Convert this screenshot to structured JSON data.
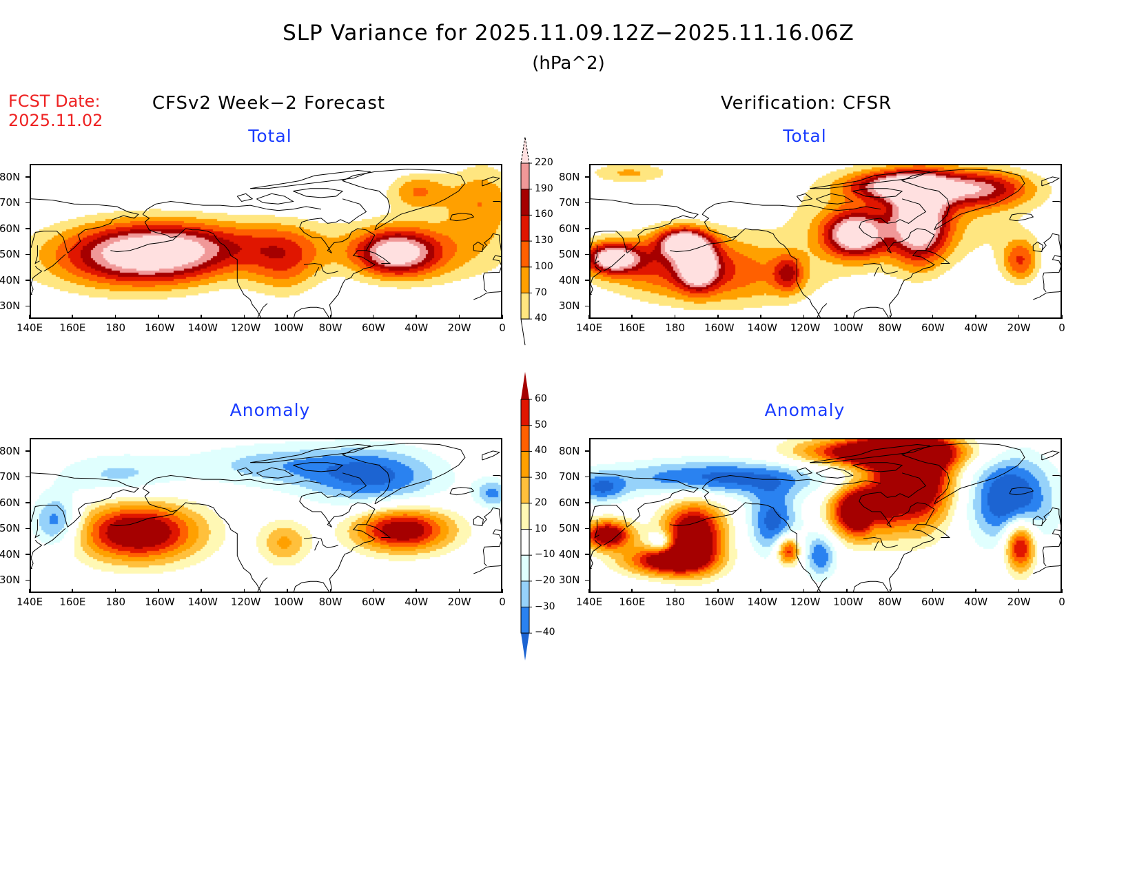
{
  "header": {
    "title": "SLP Variance for 2025.11.09.12Z−2025.11.16.06Z",
    "units": "(hPa^2)",
    "fcst_label": "FCST Date:",
    "fcst_date": "2025.11.02",
    "left_column": "CFSv2 Week−2 Forecast",
    "right_column": "Verification: CFSR"
  },
  "chart_data": [
    {
      "type": "heatmap",
      "id": "forecast-total",
      "title": "Total",
      "x_ticks": [
        "140E",
        "160E",
        "180",
        "160W",
        "140W",
        "120W",
        "100W",
        "80W",
        "60W",
        "40W",
        "20W",
        "0"
      ],
      "y_ticks": [
        "30N",
        "40N",
        "50N",
        "60N",
        "70N",
        "80N"
      ],
      "xlim": [
        140,
        360
      ],
      "ylim": [
        25,
        85
      ],
      "scale": "total",
      "blobs": [
        {
          "lon": 195,
          "lat": 51,
          "slon": 26,
          "slat": 8,
          "amp": 225
        },
        {
          "lon": 180,
          "lat": 48,
          "slon": 38,
          "slat": 11,
          "amp": 60
        },
        {
          "lon": 310,
          "lat": 51,
          "slon": 13,
          "slat": 6,
          "amp": 200
        },
        {
          "lon": 325,
          "lat": 52,
          "slon": 30,
          "slat": 10,
          "amp": 80
        },
        {
          "lon": 258,
          "lat": 47,
          "slon": 12,
          "slat": 9,
          "amp": 95
        },
        {
          "lon": 240,
          "lat": 55,
          "slon": 30,
          "slat": 7,
          "amp": 70
        },
        {
          "lon": 320,
          "lat": 75,
          "slon": 10,
          "slat": 5,
          "amp": 95
        },
        {
          "lon": 350,
          "lat": 72,
          "slon": 12,
          "slat": 10,
          "amp": 90
        }
      ]
    },
    {
      "type": "heatmap",
      "id": "verification-total",
      "title": "Total",
      "x_ticks": [
        "140E",
        "160E",
        "180",
        "160W",
        "140W",
        "120W",
        "100W",
        "80W",
        "60W",
        "40W",
        "20W",
        "0"
      ],
      "y_ticks": [
        "30N",
        "40N",
        "50N",
        "60N",
        "70N",
        "80N"
      ],
      "xlim": [
        140,
        360
      ],
      "ylim": [
        25,
        85
      ],
      "scale": "total",
      "blobs": [
        {
          "lon": 150,
          "lat": 49,
          "slon": 9,
          "slat": 4,
          "amp": 220
        },
        {
          "lon": 183,
          "lat": 55,
          "slon": 8,
          "slat": 4,
          "amp": 215
        },
        {
          "lon": 190,
          "lat": 46,
          "slon": 6,
          "slat": 6,
          "amp": 200
        },
        {
          "lon": 180,
          "lat": 47,
          "slon": 28,
          "slat": 9,
          "amp": 120
        },
        {
          "lon": 263,
          "lat": 58,
          "slon": 10,
          "slat": 6,
          "amp": 230
        },
        {
          "lon": 293,
          "lat": 63,
          "slon": 9,
          "slat": 11,
          "amp": 225
        },
        {
          "lon": 283,
          "lat": 77,
          "slon": 16,
          "slat": 4,
          "amp": 200
        },
        {
          "lon": 320,
          "lat": 76,
          "slon": 18,
          "slat": 5,
          "amp": 170
        },
        {
          "lon": 285,
          "lat": 65,
          "slon": 40,
          "slat": 14,
          "amp": 80
        },
        {
          "lon": 232,
          "lat": 43,
          "slon": 5,
          "slat": 5,
          "amp": 110
        },
        {
          "lon": 340,
          "lat": 48,
          "slon": 6,
          "slat": 6,
          "amp": 120
        },
        {
          "lon": 158,
          "lat": 82,
          "slon": 14,
          "slat": 3,
          "amp": 75
        },
        {
          "lon": 210,
          "lat": 40,
          "slon": 30,
          "slat": 9,
          "amp": 60
        }
      ]
    },
    {
      "type": "heatmap",
      "id": "forecast-anomaly",
      "title": "Anomaly",
      "x_ticks": [
        "140E",
        "160E",
        "180",
        "160W",
        "140W",
        "120W",
        "100W",
        "80W",
        "60W",
        "40W",
        "20W",
        "0"
      ],
      "y_ticks": [
        "30N",
        "40N",
        "50N",
        "60N",
        "70N",
        "80N"
      ],
      "xlim": [
        140,
        360
      ],
      "ylim": [
        25,
        85
      ],
      "scale": "anomaly",
      "blobs": [
        {
          "lon": 190,
          "lat": 49,
          "slon": 20,
          "slat": 8,
          "amp": 80
        },
        {
          "lon": 313,
          "lat": 50,
          "slon": 16,
          "slat": 6,
          "amp": 75
        },
        {
          "lon": 258,
          "lat": 45,
          "slon": 8,
          "slat": 6,
          "amp": 32
        },
        {
          "lon": 152,
          "lat": 53,
          "slon": 8,
          "slat": 7,
          "amp": -42
        },
        {
          "lon": 300,
          "lat": 70,
          "slon": 22,
          "slat": 8,
          "amp": -40
        },
        {
          "lon": 255,
          "lat": 75,
          "slon": 30,
          "slat": 6,
          "amp": -25
        },
        {
          "lon": 180,
          "lat": 71,
          "slon": 20,
          "slat": 6,
          "amp": -22
        },
        {
          "lon": 355,
          "lat": 64,
          "slon": 6,
          "slat": 4,
          "amp": -32
        }
      ]
    },
    {
      "type": "heatmap",
      "id": "verification-anomaly",
      "title": "Anomaly",
      "x_ticks": [
        "140E",
        "160E",
        "180",
        "160W",
        "140W",
        "120W",
        "100W",
        "80W",
        "60W",
        "40W",
        "20W",
        "0"
      ],
      "y_ticks": [
        "30N",
        "40N",
        "50N",
        "60N",
        "70N",
        "80N"
      ],
      "xlim": [
        140,
        360
      ],
      "ylim": [
        25,
        85
      ],
      "scale": "anomaly",
      "blobs": [
        {
          "lon": 148,
          "lat": 48,
          "slon": 8,
          "slat": 4,
          "amp": 80
        },
        {
          "lon": 188,
          "lat": 48,
          "slon": 10,
          "slat": 9,
          "amp": 85
        },
        {
          "lon": 175,
          "lat": 38,
          "slon": 14,
          "slat": 4,
          "amp": 70
        },
        {
          "lon": 265,
          "lat": 57,
          "slon": 9,
          "slat": 7,
          "amp": 95
        },
        {
          "lon": 290,
          "lat": 70,
          "slon": 13,
          "slat": 13,
          "amp": 100
        },
        {
          "lon": 275,
          "lat": 80,
          "slon": 25,
          "slat": 4,
          "amp": 90
        },
        {
          "lon": 232,
          "lat": 42,
          "slon": 4,
          "slat": 4,
          "amp": 65
        },
        {
          "lon": 340,
          "lat": 44,
          "slon": 5,
          "slat": 7,
          "amp": 75
        },
        {
          "lon": 200,
          "lat": 70,
          "slon": 35,
          "slat": 5,
          "amp": -45
        },
        {
          "lon": 335,
          "lat": 62,
          "slon": 14,
          "slat": 12,
          "amp": -55
        },
        {
          "lon": 225,
          "lat": 53,
          "slon": 8,
          "slat": 9,
          "amp": -45
        },
        {
          "lon": 247,
          "lat": 40,
          "slon": 5,
          "slat": 6,
          "amp": -40
        },
        {
          "lon": 173,
          "lat": 45,
          "slon": 4,
          "slat": 3,
          "amp": -35
        },
        {
          "lon": 272,
          "lat": 52,
          "slon": 3,
          "slat": 3,
          "amp": -20
        },
        {
          "lon": 145,
          "lat": 66,
          "slon": 8,
          "slat": 4,
          "amp": -35
        }
      ]
    }
  ],
  "colorbars": {
    "total": {
      "levels": [
        40,
        70,
        100,
        130,
        160,
        190,
        220
      ],
      "labels": [
        "40",
        "70",
        "100",
        "130",
        "160",
        "190",
        "220"
      ],
      "colors": [
        "#ffe680",
        "#ffa000",
        "#ff6000",
        "#e01600",
        "#a50000",
        "#f09898",
        "#ffe0e0"
      ],
      "under_color": "#ffffff"
    },
    "anomaly": {
      "levels": [
        -40,
        -30,
        -20,
        -10,
        10,
        20,
        30,
        40,
        50,
        60
      ],
      "labels": [
        "−40",
        "−30",
        "−20",
        "−10",
        "10",
        "20",
        "30",
        "40",
        "50",
        "60"
      ],
      "colors": [
        "#1c64d2",
        "#2a82f0",
        "#96d2fa",
        "#e0fffe",
        "#ffffff",
        "#fff8b4",
        "#ffc03c",
        "#ffa000",
        "#ff6000",
        "#e01600",
        "#a50000"
      ]
    }
  }
}
